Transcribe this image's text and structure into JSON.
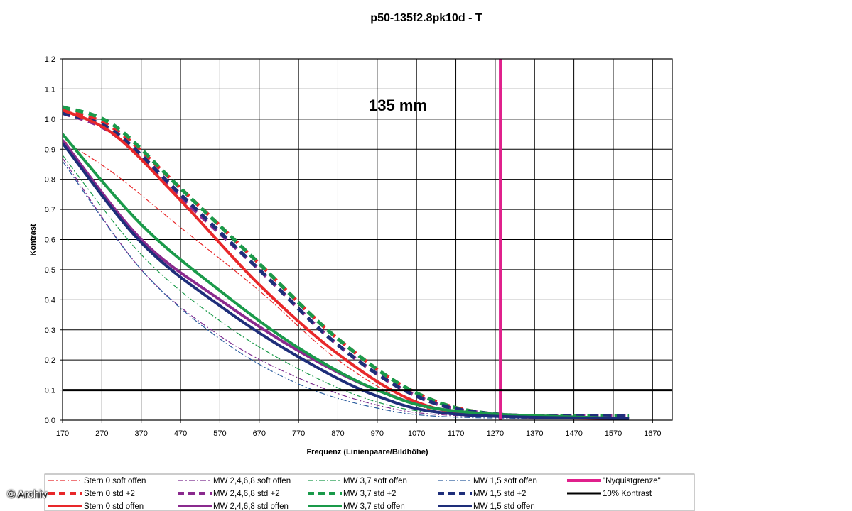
{
  "chart_data": {
    "type": "line",
    "title": "p50-135f2.8pk10d - T",
    "annotation": "135 mm",
    "xlabel": "Frequenz (Linienpaare/Bildhöhe)",
    "ylabel": "Kontrast",
    "xlim": [
      170,
      1720
    ],
    "ylim": [
      0,
      1.2
    ],
    "x_ticks": [
      170,
      270,
      370,
      470,
      570,
      670,
      770,
      870,
      970,
      1070,
      1170,
      1270,
      1370,
      1470,
      1570,
      1670
    ],
    "y_ticks": [
      "0,0",
      "0,1",
      "0,2",
      "0,3",
      "0,4",
      "0,5",
      "0,6",
      "0,7",
      "0,8",
      "0,9",
      "1,0",
      "1,1",
      "1,2"
    ],
    "grid": true,
    "legend_position": "bottom",
    "series": [
      {
        "name": "Stern 0 soft offen",
        "color": "#e8282a",
        "style": "dashdot",
        "width": 1.2,
        "points": [
          [
            170,
            0.93
          ],
          [
            300,
            0.82
          ],
          [
            470,
            0.64
          ],
          [
            670,
            0.43
          ],
          [
            870,
            0.2
          ],
          [
            1070,
            0.05
          ],
          [
            1270,
            0.01
          ],
          [
            1610,
            0.01
          ]
        ]
      },
      {
        "name": "MW 2,4,6,8 soft offen",
        "color": "#7b2a8e",
        "style": "dashdot",
        "width": 1.2,
        "points": [
          [
            170,
            0.87
          ],
          [
            370,
            0.5
          ],
          [
            570,
            0.28
          ],
          [
            770,
            0.14
          ],
          [
            970,
            0.05
          ],
          [
            1170,
            0.015
          ],
          [
            1610,
            0.005
          ]
        ]
      },
      {
        "name": "MW 3,7 soft offen",
        "color": "#1a9a4a",
        "style": "dashdot",
        "width": 1.2,
        "points": [
          [
            170,
            0.88
          ],
          [
            370,
            0.55
          ],
          [
            570,
            0.33
          ],
          [
            770,
            0.17
          ],
          [
            970,
            0.06
          ],
          [
            1170,
            0.02
          ],
          [
            1610,
            0.005
          ]
        ]
      },
      {
        "name": "MW 1,5 soft offen",
        "color": "#2a5c9e",
        "style": "dashdot",
        "width": 1.2,
        "points": [
          [
            170,
            0.86
          ],
          [
            370,
            0.5
          ],
          [
            570,
            0.27
          ],
          [
            770,
            0.12
          ],
          [
            970,
            0.04
          ],
          [
            1170,
            0.01
          ],
          [
            1610,
            0.005
          ]
        ]
      },
      {
        "name": "Stern 0 std +2",
        "color": "#e8282a",
        "style": "dash",
        "width": 5,
        "points": [
          [
            170,
            1.03
          ],
          [
            300,
            0.97
          ],
          [
            470,
            0.77
          ],
          [
            670,
            0.52
          ],
          [
            870,
            0.27
          ],
          [
            1070,
            0.09
          ],
          [
            1270,
            0.02
          ],
          [
            1610,
            0.015
          ]
        ]
      },
      {
        "name": "MW 2,4,6,8 std +2",
        "color": "#8a2a8e",
        "style": "dash",
        "width": 5,
        "points": [
          [
            170,
            1.02
          ],
          [
            300,
            0.95
          ],
          [
            470,
            0.74
          ],
          [
            670,
            0.5
          ],
          [
            870,
            0.25
          ],
          [
            1070,
            0.08
          ],
          [
            1270,
            0.02
          ],
          [
            1610,
            0.015
          ]
        ]
      },
      {
        "name": "MW 3,7 std +2",
        "color": "#1a9a4a",
        "style": "dash",
        "width": 5,
        "points": [
          [
            170,
            1.04
          ],
          [
            300,
            0.98
          ],
          [
            470,
            0.77
          ],
          [
            670,
            0.52
          ],
          [
            870,
            0.27
          ],
          [
            1070,
            0.09
          ],
          [
            1270,
            0.02
          ],
          [
            1610,
            0.015
          ]
        ]
      },
      {
        "name": "MW 1,5 std +2",
        "color": "#1e2e7a",
        "style": "dash",
        "width": 5,
        "points": [
          [
            170,
            1.02
          ],
          [
            300,
            0.96
          ],
          [
            470,
            0.75
          ],
          [
            670,
            0.5
          ],
          [
            870,
            0.25
          ],
          [
            1070,
            0.08
          ],
          [
            1270,
            0.02
          ],
          [
            1610,
            0.015
          ]
        ]
      },
      {
        "name": "Stern 0 std offen",
        "color": "#e8282a",
        "style": "solid",
        "width": 4,
        "points": [
          [
            170,
            1.03
          ],
          [
            300,
            0.95
          ],
          [
            470,
            0.73
          ],
          [
            670,
            0.45
          ],
          [
            870,
            0.22
          ],
          [
            1070,
            0.06
          ],
          [
            1270,
            0.015
          ],
          [
            1610,
            0.005
          ]
        ]
      },
      {
        "name": "MW 2,4,6,8 std offen",
        "color": "#8a2a8e",
        "style": "solid",
        "width": 4,
        "points": [
          [
            170,
            0.93
          ],
          [
            370,
            0.6
          ],
          [
            570,
            0.4
          ],
          [
            770,
            0.23
          ],
          [
            970,
            0.1
          ],
          [
            1170,
            0.03
          ],
          [
            1610,
            0.005
          ]
        ]
      },
      {
        "name": "MW 3,7 std offen",
        "color": "#1a9a4a",
        "style": "solid",
        "width": 4,
        "points": [
          [
            170,
            0.95
          ],
          [
            370,
            0.65
          ],
          [
            570,
            0.43
          ],
          [
            770,
            0.24
          ],
          [
            970,
            0.1
          ],
          [
            1170,
            0.03
          ],
          [
            1610,
            0.005
          ]
        ]
      },
      {
        "name": "MW 1,5 std offen",
        "color": "#1e2e7a",
        "style": "solid",
        "width": 4,
        "points": [
          [
            170,
            0.92
          ],
          [
            370,
            0.59
          ],
          [
            570,
            0.38
          ],
          [
            770,
            0.21
          ],
          [
            970,
            0.08
          ],
          [
            1170,
            0.02
          ],
          [
            1610,
            0.005
          ]
        ]
      },
      {
        "name": "\"Nyquistgrenze\"",
        "color": "#e0208c",
        "style": "solid",
        "width": 4,
        "kind": "vline",
        "x": 1283
      },
      {
        "name": "10% Kontrast",
        "color": "#000000",
        "style": "solid",
        "width": 3,
        "kind": "hline",
        "y": 0.1
      }
    ],
    "legend_rows": [
      [
        0,
        1,
        2,
        3,
        12
      ],
      [
        4,
        5,
        6,
        7,
        13
      ],
      [
        8,
        9,
        10,
        11
      ]
    ]
  },
  "watermark": "© Archiv"
}
